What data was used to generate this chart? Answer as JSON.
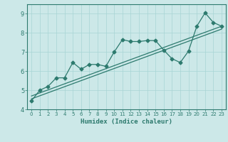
{
  "xlabel": "Humidex (Indice chaleur)",
  "bg_color": "#cce8e8",
  "line_color": "#2d7a6e",
  "grid_color": "#a8d4d4",
  "xlim": [
    -0.5,
    23.5
  ],
  "ylim": [
    4.0,
    9.5
  ],
  "xticks": [
    0,
    1,
    2,
    3,
    4,
    5,
    6,
    7,
    8,
    9,
    10,
    11,
    12,
    13,
    14,
    15,
    16,
    17,
    18,
    19,
    20,
    21,
    22,
    23
  ],
  "yticks": [
    4,
    5,
    6,
    7,
    8,
    9
  ],
  "line1_x": [
    0,
    1,
    2,
    3,
    4,
    5,
    6,
    7,
    8,
    9,
    10,
    11,
    12,
    13,
    14,
    15,
    16,
    17,
    18,
    19,
    20,
    21,
    22,
    23
  ],
  "line1_y": [
    4.45,
    5.0,
    5.2,
    5.65,
    5.65,
    6.45,
    6.1,
    6.35,
    6.35,
    6.25,
    7.0,
    7.65,
    7.55,
    7.55,
    7.6,
    7.6,
    7.1,
    6.65,
    6.45,
    7.05,
    8.35,
    9.05,
    8.55,
    8.35
  ],
  "line2_x": [
    0,
    23
  ],
  "line2_y": [
    4.7,
    8.35
  ],
  "line3_x": [
    0,
    23
  ],
  "line3_y": [
    4.55,
    8.2
  ]
}
